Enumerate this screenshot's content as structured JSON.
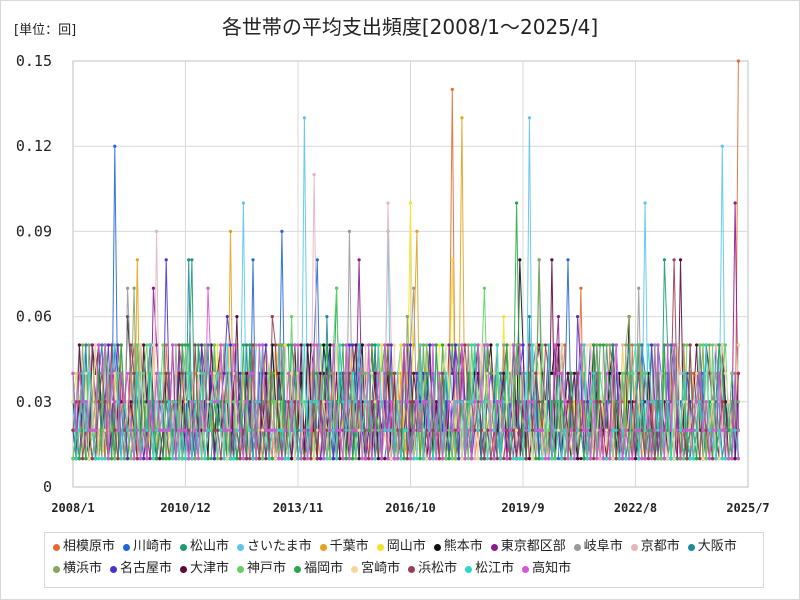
{
  "chart_data": {
    "type": "line",
    "title": "各世帯の平均支出頻度[2008/1～2025/4]",
    "unit_label": "[単位：回]",
    "xlabel": "",
    "ylabel": "",
    "x_start": "2008/1",
    "x_end": "2025/4",
    "x_axis_range": [
      "2008/1",
      "2025/7"
    ],
    "ylim": [
      0,
      0.15
    ],
    "y_ticks": [
      "0",
      "0.03",
      "0.06",
      "0.09",
      "0.12",
      "0.15"
    ],
    "y_tick_values": [
      0,
      0.03,
      0.06,
      0.09,
      0.12,
      0.15
    ],
    "x_ticks": [
      "2008/1",
      "2010/12",
      "2013/11",
      "2016/10",
      "2019/9",
      "2022/8",
      "2025/7"
    ],
    "grid": true,
    "legend_position": "bottom",
    "series": [
      {
        "name": "相模原市",
        "color": "#e8692e",
        "peaks": [
          [
            "2014/2",
            0.05
          ],
          [
            "2017/11",
            0.14
          ],
          [
            "2021/3",
            0.07
          ],
          [
            "2025/4",
            0.15
          ]
        ]
      },
      {
        "name": "川崎市",
        "color": "#2166d6",
        "peaks": [
          [
            "2009/2",
            0.12
          ],
          [
            "2012/9",
            0.08
          ],
          [
            "2013/6",
            0.09
          ],
          [
            "2014/5",
            0.08
          ],
          [
            "2020/11",
            0.08
          ]
        ]
      },
      {
        "name": "松山市",
        "color": "#1f9a6e",
        "peaks": [
          [
            "2011/2",
            0.08
          ],
          [
            "2014/11",
            0.07
          ],
          [
            "2020/2",
            0.08
          ],
          [
            "2023/5",
            0.08
          ]
        ]
      },
      {
        "name": "さいたま市",
        "color": "#5bc4ec",
        "peaks": [
          [
            "2012/6",
            0.1
          ],
          [
            "2014/1",
            0.13
          ],
          [
            "2016/3",
            0.09
          ],
          [
            "2019/11",
            0.13
          ],
          [
            "2022/11",
            0.1
          ],
          [
            "2024/11",
            0.12
          ]
        ]
      },
      {
        "name": "千葉市",
        "color": "#e3a21b",
        "peaks": [
          [
            "2009/9",
            0.08
          ],
          [
            "2012/2",
            0.09
          ],
          [
            "2016/12",
            0.09
          ],
          [
            "2018/2",
            0.13
          ]
        ]
      },
      {
        "name": "岡山市",
        "color": "#f3e22a",
        "peaks": [
          [
            "2016/10",
            0.1
          ],
          [
            "2017/11",
            0.08
          ],
          [
            "2019/3",
            0.06
          ]
        ]
      },
      {
        "name": "熊本市",
        "color": "#111111",
        "peaks": [
          [
            "2009/6",
            0.06
          ],
          [
            "2014/3",
            0.05
          ],
          [
            "2019/8",
            0.08
          ],
          [
            "2022/6",
            0.06
          ]
        ]
      },
      {
        "name": "東京都区部",
        "color": "#8a1c8f",
        "peaks": [
          [
            "2010/2",
            0.07
          ],
          [
            "2015/6",
            0.08
          ],
          [
            "2020/8",
            0.06
          ],
          [
            "2025/3",
            0.1
          ]
        ]
      },
      {
        "name": "岐阜市",
        "color": "#999999",
        "peaks": [
          [
            "2009/6",
            0.07
          ],
          [
            "2015/3",
            0.09
          ],
          [
            "2016/11",
            0.07
          ],
          [
            "2022/9",
            0.07
          ]
        ]
      },
      {
        "name": "京都市",
        "color": "#e8b4bc",
        "peaks": [
          [
            "2010/3",
            0.09
          ],
          [
            "2014/4",
            0.11
          ],
          [
            "2016/3",
            0.1
          ]
        ]
      },
      {
        "name": "大阪市",
        "color": "#1d8a9a",
        "peaks": [
          [
            "2011/1",
            0.08
          ],
          [
            "2014/8",
            0.06
          ],
          [
            "2019/11",
            0.06
          ]
        ]
      },
      {
        "name": "横浜市",
        "color": "#86a55a",
        "peaks": [
          [
            "2009/8",
            0.07
          ],
          [
            "2016/9",
            0.06
          ],
          [
            "2020/2",
            0.08
          ],
          [
            "2022/6",
            0.06
          ]
        ]
      },
      {
        "name": "名古屋市",
        "color": "#4b2fcf",
        "peaks": [
          [
            "2010/6",
            0.08
          ],
          [
            "2012/1",
            0.06
          ],
          [
            "2021/2",
            0.06
          ]
        ]
      },
      {
        "name": "大津市",
        "color": "#5c0a3e",
        "peaks": [
          [
            "2012/4",
            0.06
          ],
          [
            "2020/6",
            0.08
          ],
          [
            "2023/10",
            0.08
          ]
        ]
      },
      {
        "name": "神戸市",
        "color": "#5fd35f",
        "peaks": [
          [
            "2013/9",
            0.06
          ],
          [
            "2014/11",
            0.07
          ],
          [
            "2018/9",
            0.07
          ]
        ]
      },
      {
        "name": "福岡市",
        "color": "#27a844",
        "peaks": [
          [
            "2011/1",
            0.05
          ],
          [
            "2019/7",
            0.1
          ],
          [
            "2021/10",
            0.05
          ]
        ]
      },
      {
        "name": "宮崎市",
        "color": "#f4d7a0",
        "peaks": [
          [
            "2015/9",
            0.05
          ],
          [
            "2021/6",
            0.05
          ]
        ]
      },
      {
        "name": "浜松市",
        "color": "#9a3c52",
        "peaks": [
          [
            "2013/3",
            0.06
          ],
          [
            "2023/8",
            0.08
          ]
        ]
      },
      {
        "name": "松江市",
        "color": "#2ed8c9",
        "peaks": [
          [
            "2009/2",
            0.05
          ],
          [
            "2024/6",
            0.05
          ]
        ]
      },
      {
        "name": "高知市",
        "color": "#d457d8",
        "peaks": [
          [
            "2011/7",
            0.07
          ],
          [
            "2022/2",
            0.05
          ]
        ]
      }
    ]
  }
}
